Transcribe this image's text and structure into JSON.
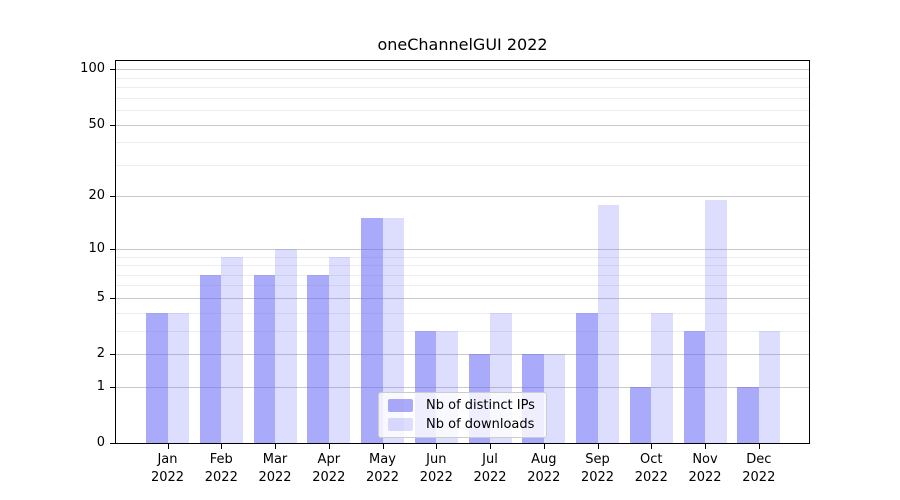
{
  "chart_data": {
    "type": "bar",
    "title": "oneChannelGUI 2022",
    "year_label": "2022",
    "categories": [
      "Jan",
      "Feb",
      "Mar",
      "Apr",
      "May",
      "Jun",
      "Jul",
      "Aug",
      "Sep",
      "Oct",
      "Nov",
      "Dec"
    ],
    "series": [
      {
        "name": "Nb of distinct IPs",
        "color": "#6464f5",
        "alpha": 0.55,
        "values": [
          4,
          7,
          7,
          7,
          15,
          3,
          2,
          2,
          4,
          1,
          3,
          1
        ]
      },
      {
        "name": "Nb of downloads",
        "color": "#6464f5",
        "alpha": 0.22,
        "values": [
          4,
          9,
          10,
          9,
          15,
          3,
          4,
          2,
          18,
          4,
          19,
          3
        ]
      }
    ],
    "y_axis": {
      "scale": "log1p",
      "major_ticks": [
        0,
        1,
        2,
        5,
        10,
        20,
        50,
        100
      ],
      "minor_ticks": [
        3,
        4,
        6,
        7,
        8,
        9,
        30,
        40,
        60,
        70,
        80,
        90
      ],
      "ymax": 114
    },
    "x_axis": {
      "label_format": "month over year"
    },
    "legend": {
      "position": "lower center"
    },
    "grid": true,
    "colors": {
      "bar_ips_on_white": "#aaaaf9",
      "bar_downloads_on_white": "#dcdcfc",
      "major_grid": "#c9c9c9",
      "minor_grid": "#ededed",
      "spine": "#000000",
      "background": "#ffffff"
    }
  }
}
